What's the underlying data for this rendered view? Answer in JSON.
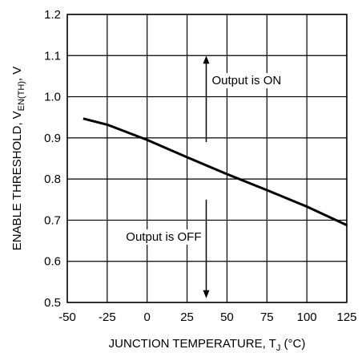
{
  "chart_data": {
    "type": "line",
    "xlabel": "JUNCTION TEMPERATURE, T",
    "xlabel_sub": "J",
    "xlabel_unit": " (°C)",
    "ylabel": "ENABLE THRESHOLD, V",
    "ylabel_sub": "EN(TH)",
    "ylabel_unit": ", V",
    "xlim": [
      -50,
      125
    ],
    "ylim": [
      0.5,
      1.2
    ],
    "xticks": [
      -50,
      -25,
      0,
      25,
      50,
      75,
      100,
      125
    ],
    "xtick_labels": [
      "-50",
      "-25",
      "0",
      "25",
      "50",
      "75",
      "100",
      "125"
    ],
    "yticks": [
      0.5,
      0.6,
      0.7,
      0.8,
      0.9,
      1.0,
      1.1,
      1.2
    ],
    "ytick_labels": [
      "0.5",
      "0.6",
      "0.7",
      "0.8",
      "0.9",
      "1.0",
      "1.1",
      "1.2"
    ],
    "grid": true,
    "series": [
      {
        "x": [
          -40,
          -25,
          0,
          25,
          50,
          75,
          100,
          125
        ],
        "y": [
          0.947,
          0.932,
          0.895,
          0.853,
          0.812,
          0.773,
          0.733,
          0.688
        ]
      }
    ],
    "annotations": {
      "on_text": "Output is ON",
      "off_text": "Output is OFF",
      "arrow_x": 37,
      "on_arrow_y": [
        0.89,
        1.09
      ],
      "off_arrow_y": [
        0.75,
        0.52
      ]
    }
  }
}
